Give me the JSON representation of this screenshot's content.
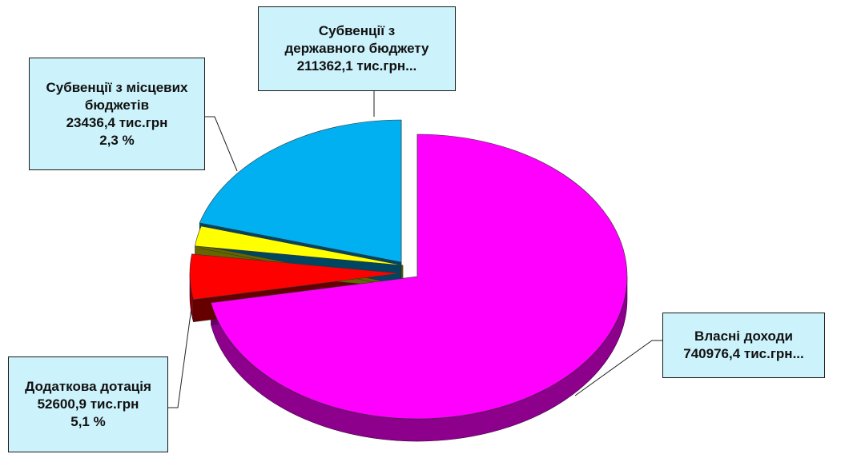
{
  "chart_data": {
    "type": "pie",
    "title": "",
    "slices": [
      {
        "label": "Власні доходи",
        "value": 740976.4,
        "color": "#ff00ff"
      },
      {
        "label": "Додаткова дотація",
        "value": 52600.9,
        "color": "#ff0000"
      },
      {
        "label": "Субвенції з місцевих бюджетів",
        "value": 23436.4,
        "color": "#ffff00"
      },
      {
        "label": "Субвенції з державного бюджету",
        "value": 211362.1,
        "color": "#00b0f0"
      }
    ],
    "labels": {
      "derzh": {
        "lines": [
          "Субвенції з",
          "державного бюджету",
          "211362,1 тис.грн..."
        ]
      },
      "mistsevi": {
        "lines": [
          "Субвенції з місцевих",
          "бюджетів",
          "23436,4 тис.грн",
          "2,3 %"
        ]
      },
      "vlasni": {
        "lines": [
          "Власні доходи",
          "740976,4 тис.грн..."
        ]
      },
      "dotatsia": {
        "lines": [
          "Додаткова дотація",
          "52600,9 тис.грн",
          "5,1 %"
        ]
      }
    }
  }
}
